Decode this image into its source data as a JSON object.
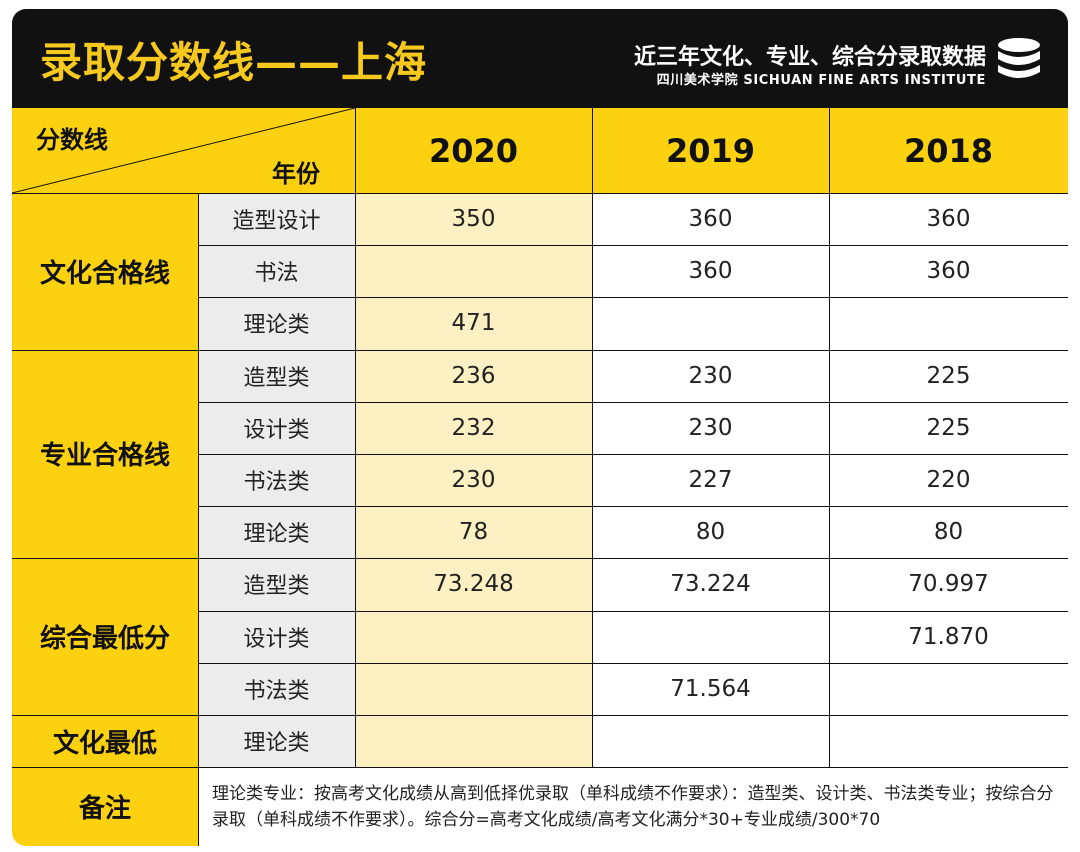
{
  "header": {
    "title": "录取分数线——上海",
    "subtitle": "近三年文化、专业、综合分录取数据",
    "institute": "四川美术学院 SICHUAN FINE ARTS INSTITUTE",
    "icon": "database-icon",
    "colors": {
      "accent": "#fcd10f",
      "title": "#f8c91d",
      "background": "#111111",
      "highlight_column": "#fdf0c2"
    }
  },
  "table": {
    "corner_top": "分数线",
    "corner_bottom": "年份",
    "years": [
      "2020",
      "2019",
      "2018"
    ],
    "groups": [
      {
        "name": "文化合格线",
        "rows": [
          {
            "label": "造型设计",
            "values": [
              "350",
              "360",
              "360"
            ]
          },
          {
            "label": "书法",
            "values": [
              "",
              "360",
              "360"
            ]
          },
          {
            "label": "理论类",
            "values": [
              "471",
              "",
              ""
            ]
          }
        ]
      },
      {
        "name": "专业合格线",
        "rows": [
          {
            "label": "造型类",
            "values": [
              "236",
              "230",
              "225"
            ]
          },
          {
            "label": "设计类",
            "values": [
              "232",
              "230",
              "225"
            ]
          },
          {
            "label": "书法类",
            "values": [
              "230",
              "227",
              "220"
            ]
          },
          {
            "label": "理论类",
            "values": [
              "78",
              "80",
              "80"
            ]
          }
        ]
      },
      {
        "name": "综合最低分",
        "rows": [
          {
            "label": "造型类",
            "values": [
              "73.248",
              "73.224",
              "70.997"
            ]
          },
          {
            "label": "设计类",
            "values": [
              "",
              "",
              "71.870"
            ]
          },
          {
            "label": "书法类",
            "values": [
              "",
              "71.564",
              ""
            ]
          }
        ]
      },
      {
        "name": "文化最低",
        "rows": [
          {
            "label": "理论类",
            "values": [
              "",
              "",
              ""
            ]
          }
        ]
      }
    ],
    "note_label": "备注",
    "note_text": "理论类专业：按高考文化成绩从高到低择优录取（单科成绩不作要求）：造型类、设计类、书法类专业；按综合分录取（单科成绩不作要求）。综合分=高考文化成绩/高考文化满分*30+专业成绩/300*70"
  }
}
